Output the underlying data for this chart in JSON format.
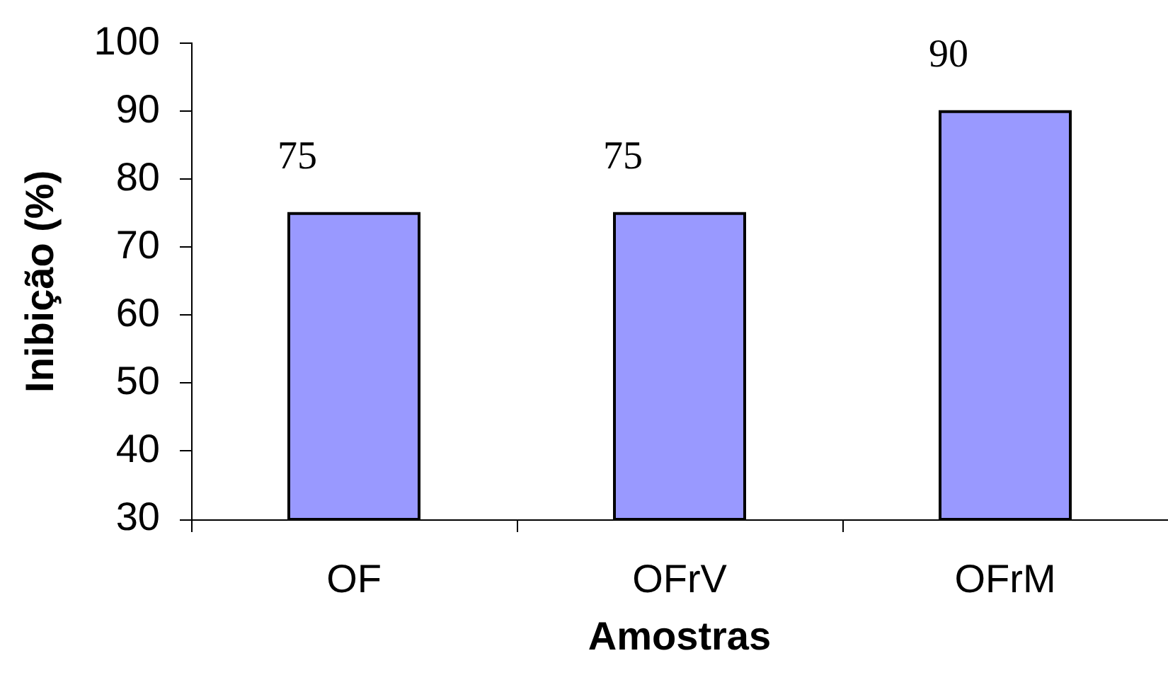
{
  "chart_data": {
    "type": "bar",
    "xlabel": "Amostras",
    "ylabel": "Inibição (%)",
    "categories": [
      "OF",
      "OFrV",
      "OFrM"
    ],
    "values": [
      75,
      75,
      90
    ],
    "color": "#9999ff",
    "ylim": [
      30,
      100
    ],
    "yticks": [
      30,
      40,
      50,
      60,
      70,
      80,
      90,
      100
    ],
    "data_labels": true
  }
}
